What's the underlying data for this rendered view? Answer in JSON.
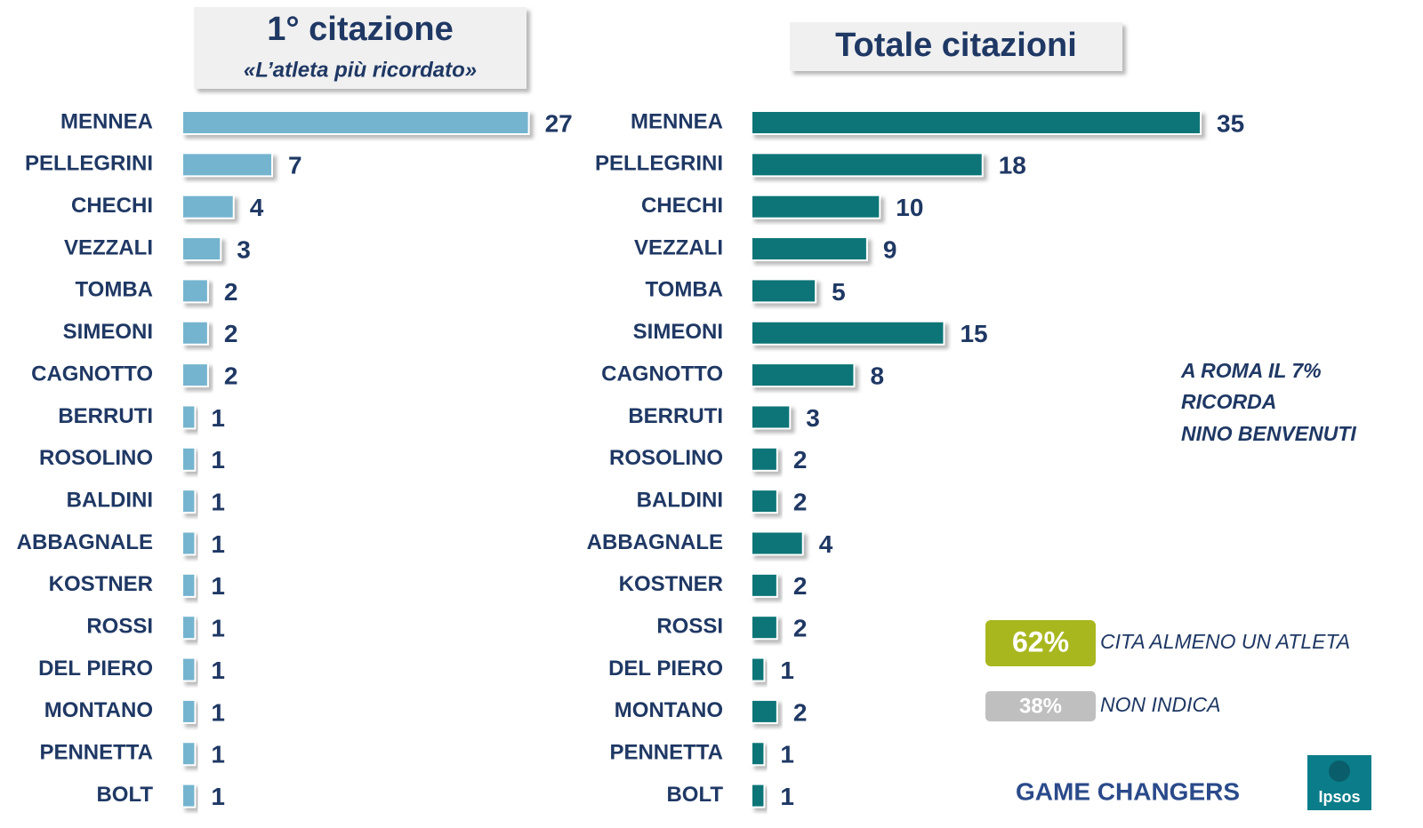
{
  "chart_data": [
    {
      "type": "bar",
      "orientation": "horizontal",
      "title": "1° citazione",
      "subtitle": "«L’atleta più ricordato»",
      "categories": [
        "MENNEA",
        "PELLEGRINI",
        "CHECHI",
        "VEZZALI",
        "TOMBA",
        "SIMEONI",
        "CAGNOTTO",
        "BERRUTI",
        "ROSOLINO",
        "BALDINI",
        "ABBAGNALE",
        "KOSTNER",
        "ROSSI",
        "DEL PIERO",
        "MONTANO",
        "PENNETTA",
        "BOLT"
      ],
      "values": [
        27,
        7,
        4,
        3,
        2,
        2,
        2,
        1,
        1,
        1,
        1,
        1,
        1,
        1,
        1,
        1,
        1
      ],
      "color": "#74b4cf"
    },
    {
      "type": "bar",
      "orientation": "horizontal",
      "title": "Totale citazioni",
      "categories": [
        "MENNEA",
        "PELLEGRINI",
        "CHECHI",
        "VEZZALI",
        "TOMBA",
        "SIMEONI",
        "CAGNOTTO",
        "BERRUTI",
        "ROSOLINO",
        "BALDINI",
        "ABBAGNALE",
        "KOSTNER",
        "ROSSI",
        "DEL PIERO",
        "MONTANO",
        "PENNETTA",
        "BOLT"
      ],
      "values": [
        35,
        18,
        10,
        9,
        5,
        15,
        8,
        3,
        2,
        2,
        4,
        2,
        2,
        1,
        2,
        1,
        1
      ],
      "color": "#077477"
    }
  ],
  "annotation": [
    "A ROMA IL 7%",
    "RICORDA",
    "NINO BENVENUTI"
  ],
  "summary": [
    {
      "badge": "62%",
      "text": "CITA ALMENO UN ATLETA"
    },
    {
      "badge": "38%",
      "text": "NON INDICA"
    }
  ],
  "footer": {
    "brand": "GAME CHANGERS",
    "logo": "Ipsos"
  }
}
